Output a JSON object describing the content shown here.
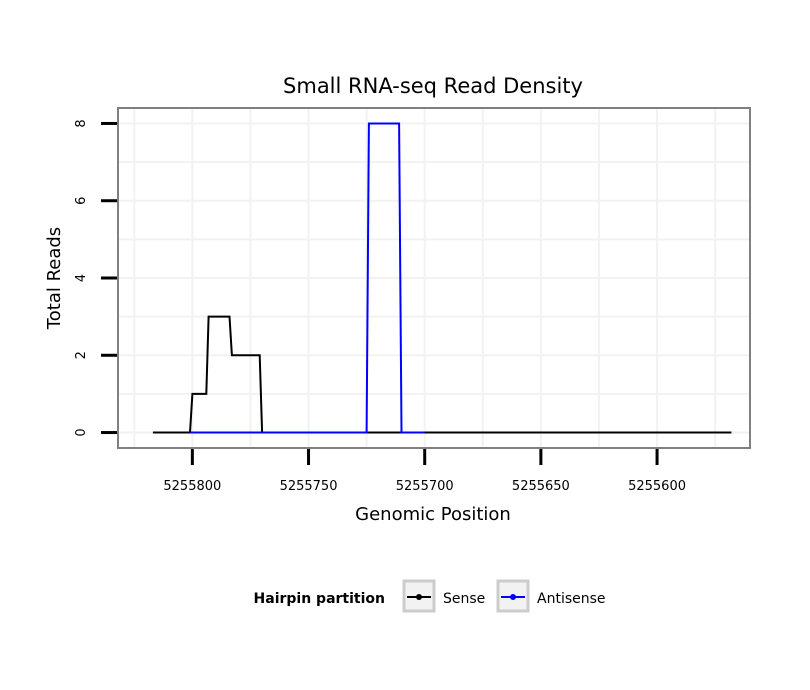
{
  "chart_data": {
    "type": "line",
    "title": "Small RNA-seq Read Density",
    "xlabel": "Genomic Position",
    "ylabel": "Total Reads",
    "xlim": [
      5255832,
      5255560
    ],
    "x_reversed": true,
    "ylim": [
      -0.4,
      8.4
    ],
    "x_ticks": [
      5255800,
      5255750,
      5255700,
      5255650,
      5255600
    ],
    "x_tick_labels": [
      "5255800",
      "5255750",
      "5255700",
      "5255650",
      "5255600"
    ],
    "y_ticks": [
      0,
      2,
      4,
      6,
      8
    ],
    "y_tick_labels": [
      "0",
      "2",
      "4",
      "6",
      "8"
    ],
    "grid": true,
    "legend": {
      "title": "Hairpin partition",
      "placement": "bottom",
      "entries": [
        "Sense",
        "Antisense"
      ]
    },
    "series": [
      {
        "name": "Sense",
        "color": "#000000",
        "x": [
          5255817,
          5255801,
          5255800,
          5255794,
          5255793,
          5255784,
          5255783,
          5255771,
          5255770,
          5255568
        ],
        "y": [
          0,
          0,
          1,
          1,
          3,
          3,
          2,
          2,
          0,
          0
        ]
      },
      {
        "name": "Antisense",
        "color": "#0000ff",
        "x": [
          5255801,
          5255725,
          5255724,
          5255711,
          5255710,
          5255700
        ],
        "y": [
          0,
          0,
          8,
          8,
          0,
          0
        ]
      }
    ]
  }
}
